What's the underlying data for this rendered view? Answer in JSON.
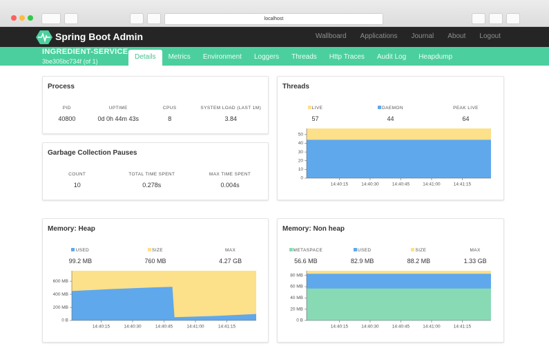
{
  "browser": {
    "url": "localhost"
  },
  "navbar": {
    "brand": "Spring Boot Admin",
    "links": [
      "Wallboard",
      "Applications",
      "Journal",
      "About",
      "Logout"
    ]
  },
  "instance": {
    "name": "INGREDIENT-SERVICE",
    "id": "3be305bc734f",
    "count": "(of 1)"
  },
  "tabs": [
    "Details",
    "Metrics",
    "Environment",
    "Loggers",
    "Threads",
    "Http Traces",
    "Audit Log",
    "Heapdump"
  ],
  "process": {
    "title": "Process",
    "stats": [
      {
        "label": "PID",
        "value": "40800"
      },
      {
        "label": "UPTIME",
        "value": "0d 0h 44m 43s"
      },
      {
        "label": "CPUS",
        "value": "8"
      },
      {
        "label": "SYSTEM LOAD (LAST 1M)",
        "value": "3.84"
      }
    ]
  },
  "gc": {
    "title": "Garbage Collection Pauses",
    "stats": [
      {
        "label": "COUNT",
        "value": "10"
      },
      {
        "label": "TOTAL TIME SPENT",
        "value": "0.278s"
      },
      {
        "label": "MAX TIME SPENT",
        "value": "0.004s"
      }
    ]
  },
  "threads": {
    "title": "Threads",
    "extra_stats": [
      {
        "label": "PEAK LIVE",
        "value": "64"
      }
    ],
    "chart": {
      "type": "area",
      "x": [
        "14:39:59",
        "14:41:29"
      ],
      "series": [
        {
          "name": "LIVE",
          "color": "#fde08a",
          "current": "57",
          "values": [
            57,
            57
          ]
        },
        {
          "name": "DAEMON",
          "color": "#5fa8ec",
          "current": "44",
          "values": [
            44,
            44
          ]
        }
      ],
      "xlim": [
        "14:39:59",
        "14:41:29"
      ],
      "xticks": [
        "14:40:15",
        "14:40:30",
        "14:40:45",
        "14:41:00",
        "14:41:15"
      ],
      "ylim": [
        0,
        57
      ],
      "yticks": [
        0,
        10,
        20,
        30,
        40,
        50
      ]
    }
  },
  "heap": {
    "title": "Memory: Heap",
    "extra_stats": [
      {
        "label": "MAX",
        "value": "4.27 GB"
      }
    ],
    "chart": {
      "type": "area",
      "x": [
        "14:40:01",
        "14:40:20",
        "14:40:40",
        "14:40:49",
        "14:40:50",
        "14:41:10",
        "14:41:29"
      ],
      "series": [
        {
          "name": "USED",
          "color": "#5fa8ec",
          "current": "99.2 MB",
          "values": [
            450,
            480,
            505,
            515,
            50,
            70,
            99.2
          ]
        },
        {
          "name": "SIZE",
          "color": "#fde08a",
          "current": "760 MB",
          "values": [
            760,
            760,
            760,
            760,
            760,
            760,
            760
          ]
        }
      ],
      "xlim": [
        "14:40:01",
        "14:41:29"
      ],
      "xticks": [
        "14:40:15",
        "14:40:30",
        "14:40:45",
        "14:41:00",
        "14:41:15"
      ],
      "ylim": [
        0,
        760
      ],
      "yticks": [
        {
          "value": 0,
          "label": "0 B"
        },
        {
          "value": 200,
          "label": "200 MB"
        },
        {
          "value": 400,
          "label": "400 MB"
        },
        {
          "value": 600,
          "label": "600 MB"
        }
      ]
    }
  },
  "nonheap": {
    "title": "Memory: Non heap",
    "extra_stats": [
      {
        "label": "MAX",
        "value": "1.33 GB"
      }
    ],
    "chart": {
      "type": "area",
      "x": [
        "14:39:59",
        "14:41:29"
      ],
      "series": [
        {
          "name": "METASPACE",
          "color": "#88dab5",
          "current": "56.6 MB",
          "values": [
            56.6,
            56.6
          ]
        },
        {
          "name": "USED",
          "color": "#5fa8ec",
          "current": "82.9 MB",
          "values": [
            82.9,
            82.9
          ]
        },
        {
          "name": "SIZE",
          "color": "#fde08a",
          "current": "88.2 MB",
          "values": [
            88.2,
            88.2
          ]
        }
      ],
      "xlim": [
        "14:39:59",
        "14:41:29"
      ],
      "xticks": [
        "14:40:15",
        "14:40:30",
        "14:40:45",
        "14:41:00",
        "14:41:15"
      ],
      "ylim": [
        0,
        88.2
      ],
      "yticks": [
        {
          "value": 0,
          "label": "0 B"
        },
        {
          "value": 20,
          "label": "20 MB"
        },
        {
          "value": 40,
          "label": "40 MB"
        },
        {
          "value": 60,
          "label": "60 MB"
        },
        {
          "value": 80,
          "label": "80 MB"
        }
      ]
    }
  }
}
